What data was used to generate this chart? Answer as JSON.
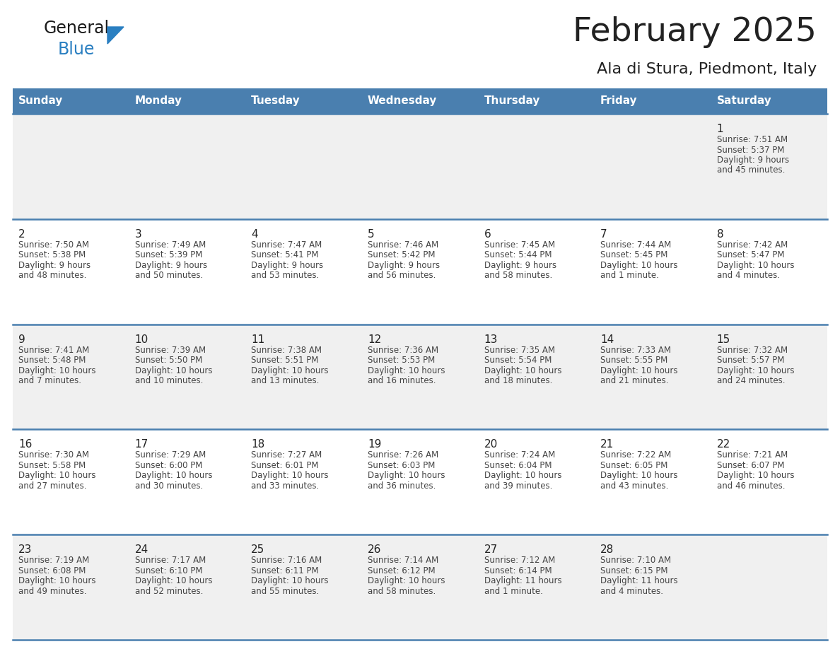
{
  "title": "February 2025",
  "subtitle": "Ala di Stura, Piedmont, Italy",
  "days_of_week": [
    "Sunday",
    "Monday",
    "Tuesday",
    "Wednesday",
    "Thursday",
    "Friday",
    "Saturday"
  ],
  "header_bg": "#4a7faf",
  "header_text": "#ffffff",
  "cell_bg_odd": "#f0f0f0",
  "cell_bg_even": "#ffffff",
  "divider_color": "#4a7faf",
  "text_color": "#444444",
  "day_num_color": "#222222",
  "calendar_data": [
    [
      null,
      null,
      null,
      null,
      null,
      null,
      {
        "day": "1",
        "sunrise": "7:51 AM",
        "sunset": "5:37 PM",
        "daylight": "9 hours",
        "daylight2": "and 45 minutes."
      }
    ],
    [
      {
        "day": "2",
        "sunrise": "7:50 AM",
        "sunset": "5:38 PM",
        "daylight": "9 hours",
        "daylight2": "and 48 minutes."
      },
      {
        "day": "3",
        "sunrise": "7:49 AM",
        "sunset": "5:39 PM",
        "daylight": "9 hours",
        "daylight2": "and 50 minutes."
      },
      {
        "day": "4",
        "sunrise": "7:47 AM",
        "sunset": "5:41 PM",
        "daylight": "9 hours",
        "daylight2": "and 53 minutes."
      },
      {
        "day": "5",
        "sunrise": "7:46 AM",
        "sunset": "5:42 PM",
        "daylight": "9 hours",
        "daylight2": "and 56 minutes."
      },
      {
        "day": "6",
        "sunrise": "7:45 AM",
        "sunset": "5:44 PM",
        "daylight": "9 hours",
        "daylight2": "and 58 minutes."
      },
      {
        "day": "7",
        "sunrise": "7:44 AM",
        "sunset": "5:45 PM",
        "daylight": "10 hours",
        "daylight2": "and 1 minute."
      },
      {
        "day": "8",
        "sunrise": "7:42 AM",
        "sunset": "5:47 PM",
        "daylight": "10 hours",
        "daylight2": "and 4 minutes."
      }
    ],
    [
      {
        "day": "9",
        "sunrise": "7:41 AM",
        "sunset": "5:48 PM",
        "daylight": "10 hours",
        "daylight2": "and 7 minutes."
      },
      {
        "day": "10",
        "sunrise": "7:39 AM",
        "sunset": "5:50 PM",
        "daylight": "10 hours",
        "daylight2": "and 10 minutes."
      },
      {
        "day": "11",
        "sunrise": "7:38 AM",
        "sunset": "5:51 PM",
        "daylight": "10 hours",
        "daylight2": "and 13 minutes."
      },
      {
        "day": "12",
        "sunrise": "7:36 AM",
        "sunset": "5:53 PM",
        "daylight": "10 hours",
        "daylight2": "and 16 minutes."
      },
      {
        "day": "13",
        "sunrise": "7:35 AM",
        "sunset": "5:54 PM",
        "daylight": "10 hours",
        "daylight2": "and 18 minutes."
      },
      {
        "day": "14",
        "sunrise": "7:33 AM",
        "sunset": "5:55 PM",
        "daylight": "10 hours",
        "daylight2": "and 21 minutes."
      },
      {
        "day": "15",
        "sunrise": "7:32 AM",
        "sunset": "5:57 PM",
        "daylight": "10 hours",
        "daylight2": "and 24 minutes."
      }
    ],
    [
      {
        "day": "16",
        "sunrise": "7:30 AM",
        "sunset": "5:58 PM",
        "daylight": "10 hours",
        "daylight2": "and 27 minutes."
      },
      {
        "day": "17",
        "sunrise": "7:29 AM",
        "sunset": "6:00 PM",
        "daylight": "10 hours",
        "daylight2": "and 30 minutes."
      },
      {
        "day": "18",
        "sunrise": "7:27 AM",
        "sunset": "6:01 PM",
        "daylight": "10 hours",
        "daylight2": "and 33 minutes."
      },
      {
        "day": "19",
        "sunrise": "7:26 AM",
        "sunset": "6:03 PM",
        "daylight": "10 hours",
        "daylight2": "and 36 minutes."
      },
      {
        "day": "20",
        "sunrise": "7:24 AM",
        "sunset": "6:04 PM",
        "daylight": "10 hours",
        "daylight2": "and 39 minutes."
      },
      {
        "day": "21",
        "sunrise": "7:22 AM",
        "sunset": "6:05 PM",
        "daylight": "10 hours",
        "daylight2": "and 43 minutes."
      },
      {
        "day": "22",
        "sunrise": "7:21 AM",
        "sunset": "6:07 PM",
        "daylight": "10 hours",
        "daylight2": "and 46 minutes."
      }
    ],
    [
      {
        "day": "23",
        "sunrise": "7:19 AM",
        "sunset": "6:08 PM",
        "daylight": "10 hours",
        "daylight2": "and 49 minutes."
      },
      {
        "day": "24",
        "sunrise": "7:17 AM",
        "sunset": "6:10 PM",
        "daylight": "10 hours",
        "daylight2": "and 52 minutes."
      },
      {
        "day": "25",
        "sunrise": "7:16 AM",
        "sunset": "6:11 PM",
        "daylight": "10 hours",
        "daylight2": "and 55 minutes."
      },
      {
        "day": "26",
        "sunrise": "7:14 AM",
        "sunset": "6:12 PM",
        "daylight": "10 hours",
        "daylight2": "and 58 minutes."
      },
      {
        "day": "27",
        "sunrise": "7:12 AM",
        "sunset": "6:14 PM",
        "daylight": "11 hours",
        "daylight2": "and 1 minute."
      },
      {
        "day": "28",
        "sunrise": "7:10 AM",
        "sunset": "6:15 PM",
        "daylight": "11 hours",
        "daylight2": "and 4 minutes."
      },
      null
    ]
  ],
  "logo_text1": "General",
  "logo_text2": "Blue",
  "logo_text1_color": "#1a1a1a",
  "logo_text2_color": "#2a7fc1",
  "logo_triangle_color": "#2a7fc1"
}
